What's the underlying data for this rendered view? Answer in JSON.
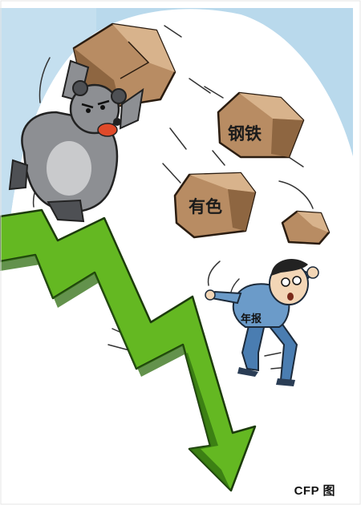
{
  "rocks": {
    "steel_label": "钢铁",
    "nonferrous_label": "有色"
  },
  "man": {
    "shirt_label": "年报"
  },
  "credit": "CFP 图",
  "colors": {
    "sky": "#b9d9ec",
    "arrow": "#64b822",
    "arrow_dark": "#2f6e10",
    "rock": "#b88c63",
    "rock_light": "#d8b38c",
    "bear": "#8d8f93",
    "bear_dark": "#4e5054",
    "shirt": "#6b9bc9",
    "pants": "#4a7db1",
    "skin": "#f3d6b6"
  }
}
